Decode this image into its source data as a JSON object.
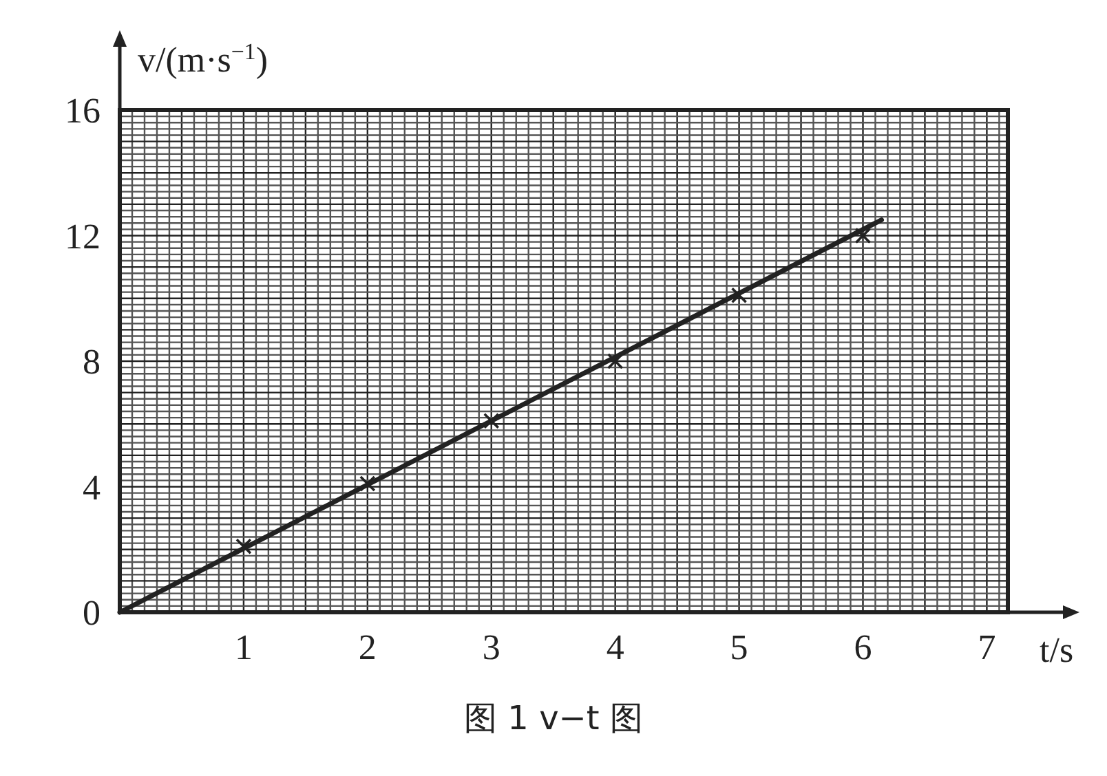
{
  "chart_data": {
    "type": "line",
    "xlabel": "t/s",
    "ylabel": "v/(m·s$^{−1}$)",
    "annotations": [
      "图 1 v−t 图"
    ],
    "series": [
      {
        "type": "scatter",
        "color": "#222222",
        "marker": "cross",
        "x": [
          1,
          2,
          3,
          4,
          5,
          6
        ],
        "values": [
          2.1,
          4.1,
          6.1,
          8.0,
          10.1,
          12.0
        ]
      },
      {
        "type": "line",
        "color": "#222222",
        "line_style": "solid",
        "x": [
          0,
          6.15
        ],
        "values": [
          0,
          12.5
        ]
      }
    ],
    "xlim": [
      0,
      7.17
    ],
    "xticks": [
      1,
      2,
      3,
      4,
      5,
      6,
      7
    ],
    "ylim": [
      0,
      16
    ],
    "yticks": [
      0,
      4,
      8,
      12,
      16
    ],
    "grid": true
  }
}
